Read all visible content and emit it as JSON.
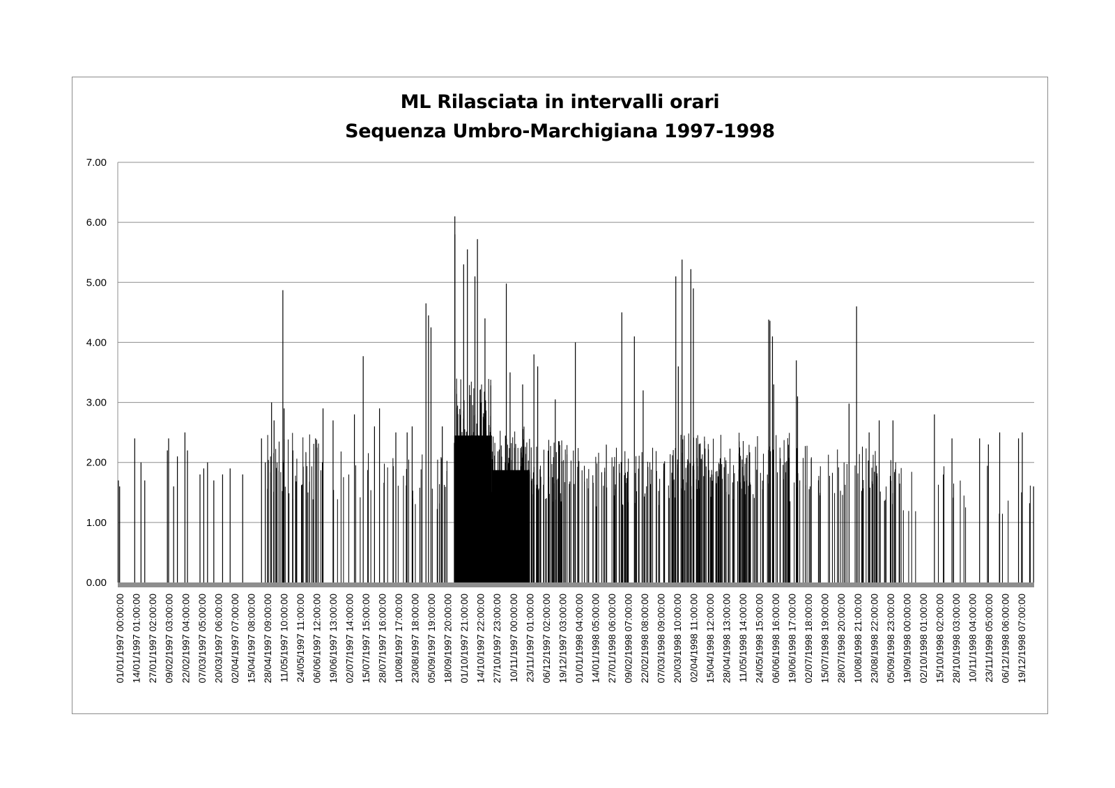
{
  "chart_data": {
    "type": "bar",
    "title": "ML Rilasciata in intervalli orari",
    "subtitle": "Sequenza Umbro-Marchigiana 1997-1998",
    "xlabel": "",
    "ylabel": "",
    "ylim": [
      0,
      7
    ],
    "y_ticks": [
      "0.00",
      "1.00",
      "2.00",
      "3.00",
      "4.00",
      "5.00",
      "6.00",
      "7.00"
    ],
    "x_range": [
      "1997-01-01T00:00",
      "1998-12-31T23:00"
    ],
    "grid": true,
    "legend": "none",
    "bar_color": "#000000",
    "x_tick_labels": [
      "01/01/1997 00:00:00",
      "14/01/1997 01:00:00",
      "27/01/1997 02:00:00",
      "09/02/1997 03:00:00",
      "22/02/1997 04:00:00",
      "07/03/1997 05:00:00",
      "20/03/1997 06:00:00",
      "02/04/1997 07:00:00",
      "15/04/1997 08:00:00",
      "28/04/1997 09:00:00",
      "11/05/1997 10:00:00",
      "24/05/1997 11:00:00",
      "06/06/1997 12:00:00",
      "19/06/1997 13:00:00",
      "02/07/1997 14:00:00",
      "15/07/1997 15:00:00",
      "28/07/1997 16:00:00",
      "10/08/1997 17:00:00",
      "23/08/1997 18:00:00",
      "05/09/1997 19:00:00",
      "18/09/1997 20:00:00",
      "01/10/1997 21:00:00",
      "14/10/1997 22:00:00",
      "27/10/1997 23:00:00",
      "10/11/1997 00:00:00",
      "23/11/1997 01:00:00",
      "06/12/1997 02:00:00",
      "19/12/1997 03:00:00",
      "01/01/1998 04:00:00",
      "14/01/1998 05:00:00",
      "27/01/1998 06:00:00",
      "09/02/1998 07:00:00",
      "22/02/1998 08:00:00",
      "07/03/1998 09:00:00",
      "20/03/1998 10:00:00",
      "02/04/1998 11:00:00",
      "15/04/1998 12:00:00",
      "28/04/1998 13:00:00",
      "11/05/1998 14:00:00",
      "24/05/1998 15:00:00",
      "06/06/1998 16:00:00",
      "19/06/1998 17:00:00",
      "02/07/1998 18:00:00",
      "15/07/1998 19:00:00",
      "28/07/1998 20:00:00",
      "10/08/1998 21:00:00",
      "23/08/1998 22:00:00",
      "05/09/1998 23:00:00",
      "19/09/1998 00:00:00",
      "02/10/1998 01:00:00",
      "15/10/1998 02:00:00",
      "28/10/1998 03:00:00",
      "10/11/1998 04:00:00",
      "23/11/1998 05:00:00",
      "06/12/1998 06:00:00",
      "19/12/1998 07:00:00"
    ],
    "peaks": [
      {
        "x": "01/01/1997",
        "y": 1.7
      },
      {
        "x": "02/01/1997",
        "y": 1.6
      },
      {
        "x": "14/01/1997",
        "y": 2.4
      },
      {
        "x": "19/01/1997",
        "y": 2.0
      },
      {
        "x": "22/01/1997",
        "y": 1.7
      },
      {
        "x": "09/02/1997",
        "y": 2.2
      },
      {
        "x": "10/02/1997",
        "y": 2.4
      },
      {
        "x": "14/02/1997",
        "y": 1.6
      },
      {
        "x": "17/02/1997",
        "y": 2.1
      },
      {
        "x": "23/02/1997",
        "y": 2.5
      },
      {
        "x": "25/02/1997",
        "y": 2.2
      },
      {
        "x": "07/03/1997",
        "y": 1.8
      },
      {
        "x": "10/03/1997",
        "y": 1.9
      },
      {
        "x": "13/03/1997",
        "y": 2.0
      },
      {
        "x": "18/03/1997",
        "y": 1.7
      },
      {
        "x": "25/03/1997",
        "y": 1.8
      },
      {
        "x": "31/03/1997",
        "y": 1.9
      },
      {
        "x": "10/04/1997",
        "y": 1.8
      },
      {
        "x": "25/04/1997",
        "y": 2.4
      },
      {
        "x": "28/04/1997",
        "y": 2.0
      },
      {
        "x": "03/05/1997",
        "y": 3.0
      },
      {
        "x": "05/05/1997",
        "y": 2.7
      },
      {
        "x": "12/05/1997",
        "y": 4.87
      },
      {
        "x": "13/05/1997",
        "y": 2.9
      },
      {
        "x": "20/05/1997",
        "y": 2.2
      },
      {
        "x": "07/06/1997",
        "y": 2.4
      },
      {
        "x": "13/06/1997",
        "y": 2.9
      },
      {
        "x": "21/06/1997",
        "y": 2.7
      },
      {
        "x": "08/07/1997",
        "y": 2.8
      },
      {
        "x": "15/07/1997",
        "y": 3.77
      },
      {
        "x": "24/07/1997",
        "y": 2.6
      },
      {
        "x": "28/07/1997",
        "y": 2.9
      },
      {
        "x": "10/08/1997",
        "y": 2.5
      },
      {
        "x": "19/08/1997",
        "y": 2.5
      },
      {
        "x": "23/08/1997",
        "y": 2.6
      },
      {
        "x": "03/09/1997",
        "y": 4.65
      },
      {
        "x": "05/09/1997",
        "y": 4.45
      },
      {
        "x": "07/09/1997",
        "y": 4.25
      },
      {
        "x": "16/09/1997",
        "y": 2.6
      },
      {
        "x": "26/09/1997",
        "y": 6.1
      },
      {
        "x": "26/09/1997",
        "y": 5.8
      },
      {
        "x": "03/10/1997",
        "y": 5.3
      },
      {
        "x": "06/10/1997",
        "y": 5.55
      },
      {
        "x": "12/10/1997",
        "y": 5.1
      },
      {
        "x": "14/10/1997",
        "y": 5.72
      },
      {
        "x": "20/10/1997",
        "y": 4.4
      },
      {
        "x": "06/11/1997",
        "y": 4.98
      },
      {
        "x": "09/11/1997",
        "y": 3.5
      },
      {
        "x": "19/11/1997",
        "y": 3.3
      },
      {
        "x": "28/11/1997",
        "y": 3.8
      },
      {
        "x": "01/12/1997",
        "y": 3.6
      },
      {
        "x": "15/12/1997",
        "y": 3.05
      },
      {
        "x": "31/12/1997",
        "y": 4.0
      },
      {
        "x": "06/02/1998",
        "y": 4.5
      },
      {
        "x": "16/02/1998",
        "y": 4.1
      },
      {
        "x": "23/02/1998",
        "y": 3.2
      },
      {
        "x": "21/03/1998",
        "y": 5.1
      },
      {
        "x": "23/03/1998",
        "y": 3.6
      },
      {
        "x": "26/03/1998",
        "y": 5.38
      },
      {
        "x": "02/04/1998",
        "y": 5.22
      },
      {
        "x": "04/04/1998",
        "y": 4.9
      },
      {
        "x": "03/06/1998",
        "y": 4.38
      },
      {
        "x": "04/06/1998",
        "y": 4.36
      },
      {
        "x": "06/06/1998",
        "y": 4.1
      },
      {
        "x": "07/06/1998",
        "y": 3.3
      },
      {
        "x": "25/06/1998",
        "y": 3.7
      },
      {
        "x": "26/06/1998",
        "y": 3.1
      },
      {
        "x": "06/08/1998",
        "y": 2.98
      },
      {
        "x": "12/08/1998",
        "y": 4.6
      },
      {
        "x": "22/08/1998",
        "y": 2.5
      },
      {
        "x": "30/08/1998",
        "y": 2.7
      },
      {
        "x": "10/09/1998",
        "y": 2.7
      },
      {
        "x": "13/10/1998",
        "y": 2.8
      },
      {
        "x": "27/10/1998",
        "y": 2.4
      },
      {
        "x": "18/11/1998",
        "y": 2.4
      },
      {
        "x": "25/11/1998",
        "y": 2.3
      },
      {
        "x": "04/12/1998",
        "y": 2.5
      },
      {
        "x": "19/12/1998",
        "y": 2.4
      },
      {
        "x": "22/12/1998",
        "y": 2.5
      },
      {
        "x": "31/12/1998",
        "y": 1.6
      }
    ],
    "activity_periods": [
      {
        "start": "28/04/1997",
        "end": "10/06/1997",
        "typical_max": 2.5,
        "density": 0.35
      },
      {
        "start": "10/06/1997",
        "end": "05/09/1997",
        "typical_max": 2.2,
        "density": 0.12
      },
      {
        "start": "05/09/1997",
        "end": "26/09/1997",
        "typical_max": 2.1,
        "density": 0.18
      },
      {
        "start": "26/09/1997",
        "end": "26/10/1997",
        "typical_max": 3.4,
        "density": 0.97
      },
      {
        "start": "26/10/1997",
        "end": "25/11/1997",
        "typical_max": 2.6,
        "density": 0.85
      },
      {
        "start": "25/11/1997",
        "end": "31/12/1997",
        "typical_max": 2.4,
        "density": 0.55
      },
      {
        "start": "31/12/1997",
        "end": "15/03/1998",
        "typical_max": 2.3,
        "density": 0.35
      },
      {
        "start": "15/03/1998",
        "end": "20/06/1998",
        "typical_max": 2.5,
        "density": 0.58
      },
      {
        "start": "20/06/1998",
        "end": "15/09/1998",
        "typical_max": 2.3,
        "density": 0.26
      },
      {
        "start": "15/09/1998",
        "end": "31/12/1998",
        "typical_max": 2.0,
        "density": 0.07
      }
    ]
  }
}
